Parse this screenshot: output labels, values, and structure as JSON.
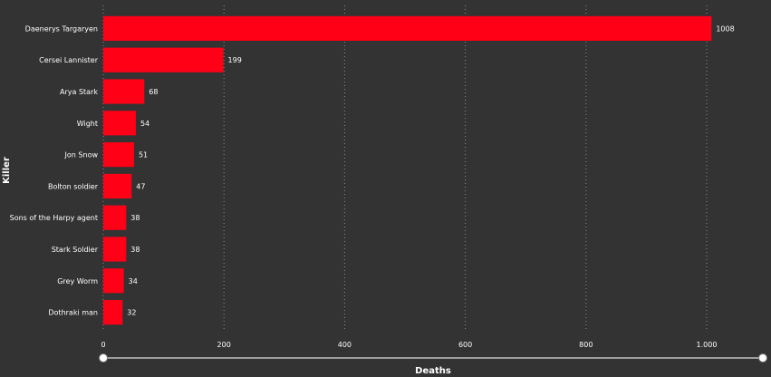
{
  "chart_data": {
    "type": "bar",
    "orientation": "horizontal",
    "categories": [
      "Daenerys Targaryen",
      "Cersei Lannister",
      "Arya Stark",
      "Wight",
      "Jon Snow",
      "Bolton soldier",
      "Sons of the Harpy agent",
      "Stark Soldier",
      "Grey Worm",
      "Dothraki man"
    ],
    "values": [
      1008,
      199,
      68,
      54,
      51,
      47,
      38,
      38,
      34,
      32
    ],
    "value_labels": [
      "1008",
      "199",
      "68",
      "54",
      "51",
      "47",
      "38",
      "38",
      "34",
      "32"
    ],
    "xlabel": "Deaths",
    "ylabel": "Killer",
    "xlim": [
      0,
      1050
    ],
    "x_ticks": [
      0,
      200,
      400,
      600,
      800,
      1000
    ],
    "x_tick_labels": [
      "0",
      "200",
      "400",
      "600",
      "800",
      "1.000"
    ],
    "grid": "vertical dotted",
    "legend": "none",
    "range_slider": true
  },
  "colors": {
    "background": "#333333",
    "bar": "#ff0016",
    "text": "#ffffff",
    "grid": "#8a8a8a",
    "slider_track": "#9e9e9e",
    "slider_handle": "#ffffff"
  }
}
